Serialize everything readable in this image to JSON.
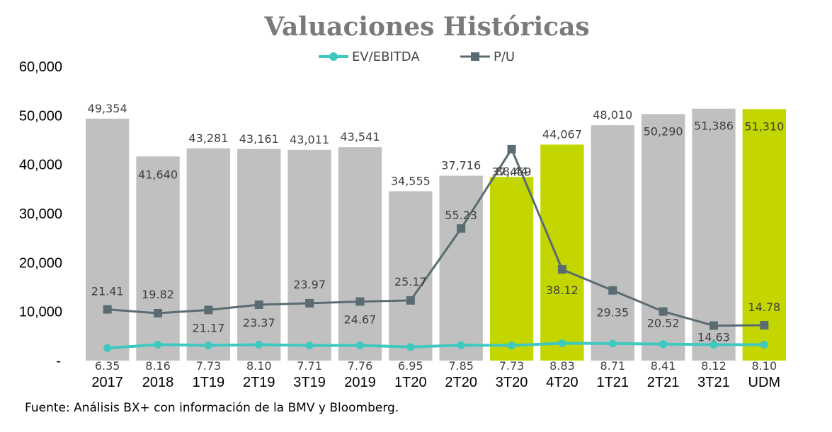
{
  "chart_data": {
    "type": "bar",
    "title": "Valuaciones Históricas",
    "categories": [
      "2017",
      "2018",
      "1T19",
      "2T19",
      "3T19",
      "2019",
      "1T20",
      "2T20",
      "3T20",
      "4T20",
      "1T21",
      "2T21",
      "3T21",
      "UDM"
    ],
    "bar_values": [
      49354,
      41640,
      43281,
      43161,
      43011,
      43541,
      34555,
      37716,
      37459,
      44067,
      48010,
      50290,
      51386,
      51310
    ],
    "bar_labels": [
      "49,354",
      "41,640",
      "43,281",
      "43,161",
      "43,011",
      "43,541",
      "34,555",
      "37,716",
      "37,459",
      "44,067",
      "48,010",
      "50,290",
      "51,386",
      "51,310"
    ],
    "bar_highlighted": [
      false,
      false,
      false,
      false,
      false,
      false,
      false,
      false,
      true,
      true,
      false,
      false,
      false,
      true
    ],
    "series": [
      {
        "name": "EV/EBITDA",
        "type": "line",
        "values": [
          6.35,
          8.16,
          7.73,
          8.1,
          7.71,
          7.76,
          6.95,
          7.85,
          7.73,
          8.83,
          8.71,
          8.41,
          8.12,
          8.1
        ],
        "labels": [
          "6.35",
          "8.16",
          "7.73",
          "8.10",
          "7.71",
          "7.76",
          "6.95",
          "7.85",
          "7.73",
          "8.83",
          "8.71",
          "8.41",
          "8.12",
          "8.10"
        ],
        "color": "#3ec8c0"
      },
      {
        "name": "P/U",
        "type": "line",
        "values": [
          21.41,
          19.82,
          21.17,
          23.37,
          23.97,
          24.67,
          25.17,
          55.23,
          88.44,
          38.12,
          29.35,
          20.52,
          14.63,
          14.78
        ],
        "labels": [
          "21.41",
          "19.82",
          "21.17",
          "23.37",
          "23.97",
          "24.67",
          "25.17",
          "55.23",
          "88.44",
          "38.12",
          "29.35",
          "20.52",
          "14.63",
          "14.78"
        ],
        "color": "#5a6b72"
      }
    ],
    "ylim": [
      0,
      60000
    ],
    "yticks": [
      0,
      10000,
      20000,
      30000,
      40000,
      50000,
      60000
    ],
    "ytick_labels": [
      "-",
      "10,000",
      "20,000",
      "30,000",
      "40,000",
      "50,000",
      "60,000"
    ],
    "grid": false,
    "legend_position": "top-center",
    "colors": {
      "bar": "#c0c0c0",
      "bar_highlight": "#c3d600"
    }
  },
  "source_note": "Fuente: Análisis BX+ con información de la BMV y Bloomberg."
}
